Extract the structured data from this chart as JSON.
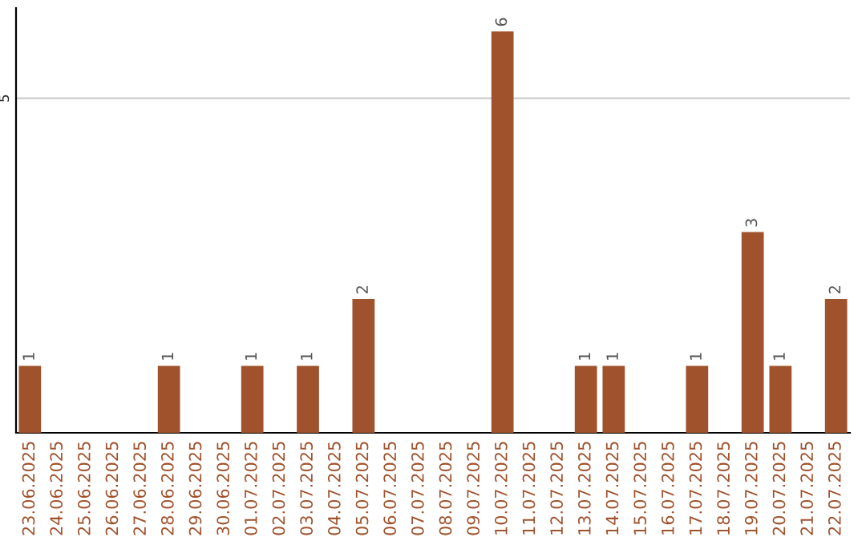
{
  "chart_data": {
    "type": "bar",
    "categories": [
      "23.06.2025",
      "24.06.2025",
      "25.06.2025",
      "26.06.2025",
      "27.06.2025",
      "28.06.2025",
      "29.06.2025",
      "30.06.2025",
      "01.07.2025",
      "02.07.2025",
      "03.07.2025",
      "04.07.2025",
      "05.07.2025",
      "06.07.2025",
      "07.07.2025",
      "08.07.2025",
      "09.07.2025",
      "10.07.2025",
      "11.07.2025",
      "12.07.2025",
      "13.07.2025",
      "14.07.2025",
      "15.07.2025",
      "16.07.2025",
      "17.07.2025",
      "18.07.2025",
      "19.07.2025",
      "20.07.2025",
      "21.07.2025",
      "22.07.2025"
    ],
    "values": [
      1,
      0,
      0,
      0,
      0,
      1,
      0,
      0,
      1,
      0,
      1,
      0,
      2,
      0,
      0,
      0,
      0,
      6,
      0,
      0,
      1,
      1,
      0,
      0,
      1,
      0,
      3,
      1,
      0,
      2
    ],
    "value_labels": [
      "1",
      null,
      null,
      null,
      null,
      "1",
      null,
      null,
      "1",
      null,
      "1",
      null,
      "2",
      null,
      null,
      null,
      null,
      "6",
      null,
      null,
      "1",
      "1",
      null,
      null,
      "1",
      null,
      "3",
      "1",
      null,
      "2"
    ],
    "color": "#a0522d",
    "ylim": [
      0,
      6.35
    ],
    "yticks": [
      5
    ],
    "grid": "y"
  }
}
